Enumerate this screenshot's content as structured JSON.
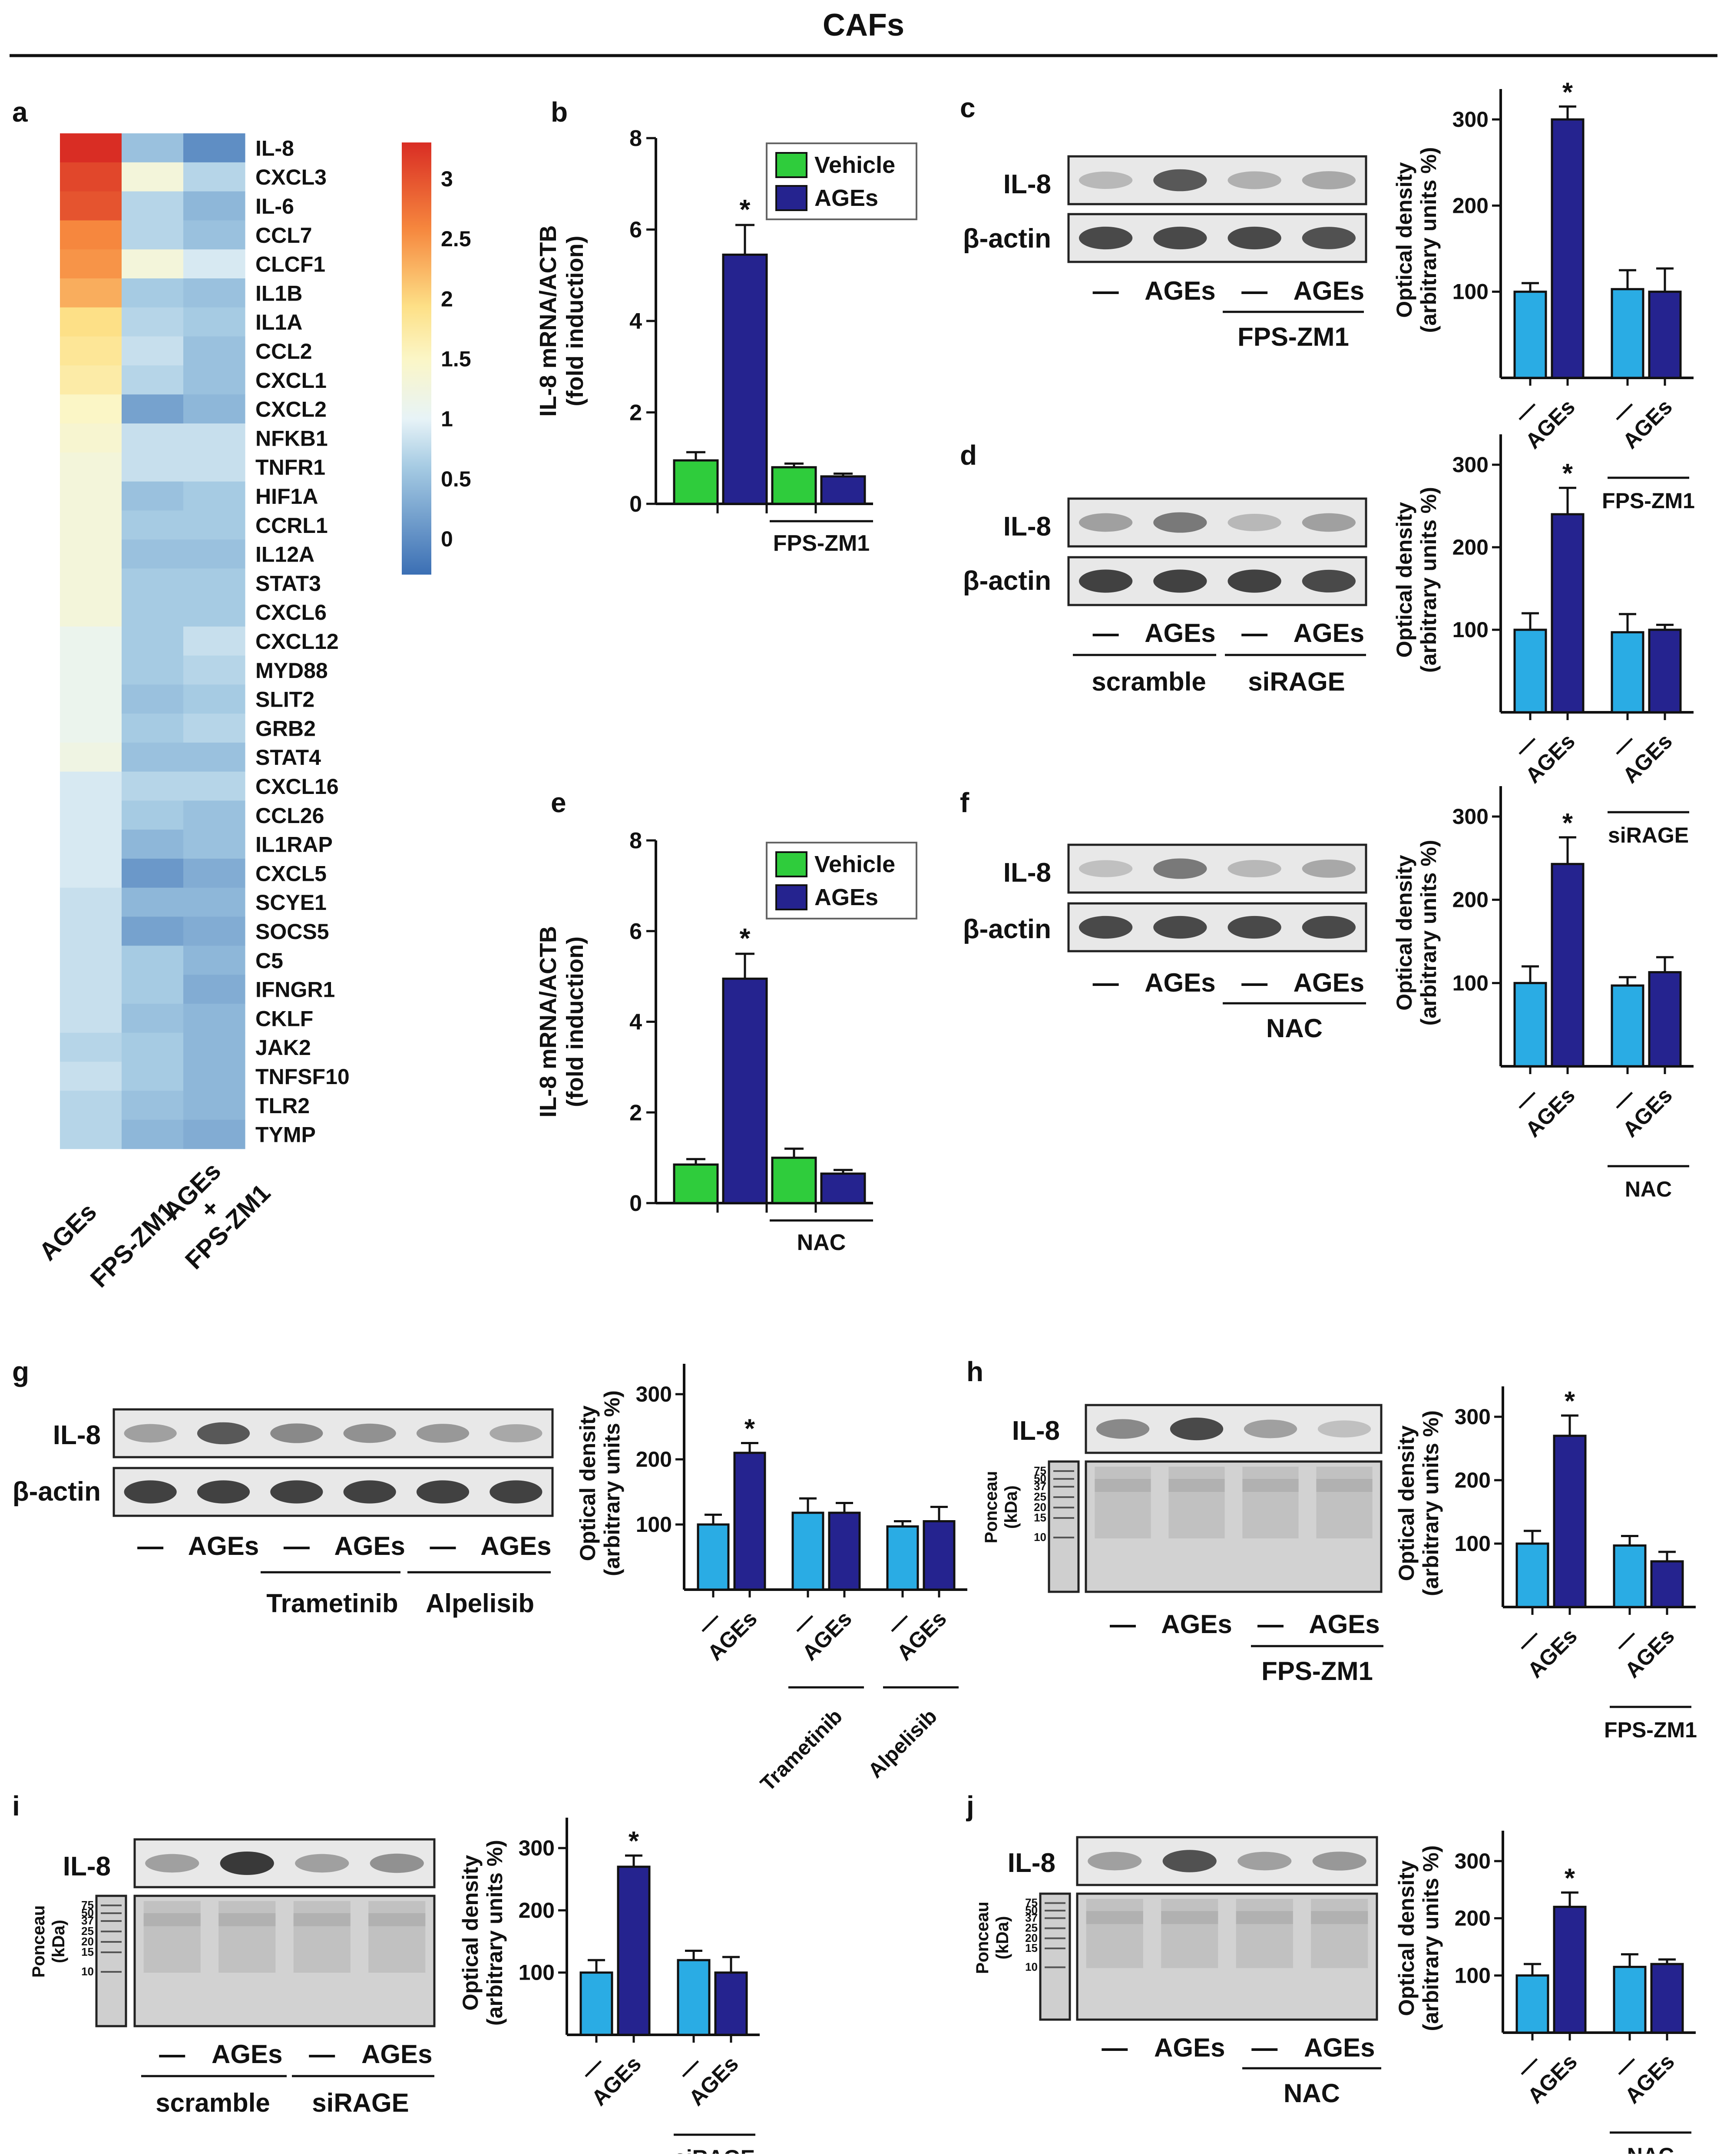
{
  "title": "CAFs",
  "colors": {
    "vehicle_green": "#2fcc3c",
    "ages_navy": "#25238f",
    "ctrl_cyan": "#2aace4",
    "axis": "#111111"
  },
  "panels": {
    "a": {
      "letter": "a"
    },
    "b": {
      "letter": "b",
      "ylabel1": "IL-8 mRNA/ACTB",
      "ylabel2": "(fold induction)",
      "treatment": "FPS-ZM1"
    },
    "c": {
      "letter": "c",
      "lane_labels": [
        "—",
        "AGEs",
        "—",
        "AGEs"
      ],
      "treatment": "FPS-ZM1"
    },
    "d": {
      "letter": "d",
      "lane_labels": [
        "—",
        "AGEs",
        "—",
        "AGEs"
      ],
      "group1": "scramble",
      "group2": "siRAGE"
    },
    "e": {
      "letter": "e",
      "ylabel1": "IL-8 mRNA/ACTB",
      "ylabel2": "(fold induction)",
      "treatment": "NAC"
    },
    "f": {
      "letter": "f",
      "lane_labels": [
        "—",
        "AGEs",
        "—",
        "AGEs"
      ],
      "treatment": "NAC"
    },
    "g": {
      "letter": "g",
      "lane_labels": [
        "—",
        "AGEs",
        "—",
        "AGEs",
        "—",
        "AGEs"
      ],
      "group1": "Trametinib",
      "group2": "Alpelisib"
    },
    "h": {
      "letter": "h",
      "lane_labels": [
        "—",
        "AGEs",
        "—",
        "AGEs"
      ],
      "treatment": "FPS-ZM1"
    },
    "i": {
      "letter": "i",
      "lane_labels": [
        "—",
        "AGEs",
        "—",
        "AGEs"
      ],
      "group1": "scramble",
      "group2": "siRAGE"
    },
    "j": {
      "letter": "j",
      "lane_labels": [
        "—",
        "AGEs",
        "—",
        "AGEs"
      ],
      "treatment": "NAC"
    }
  },
  "blot_labels": {
    "il8": "IL-8",
    "actin": "β-actin",
    "ponceau": "Ponceau",
    "kda": "(kDa)",
    "markers": [
      "75",
      "50",
      "37",
      "25",
      "20",
      "15",
      "10"
    ]
  },
  "densitometry": {
    "ylabel1": "Optical density",
    "ylabel2": "(arbitrary units %)"
  },
  "chart_data": [
    {
      "panel": "a",
      "type": "heatmap",
      "title": "",
      "colorbar_ticks": [
        "3",
        "2.5",
        "2",
        "1.5",
        "1",
        "0.5",
        "0"
      ],
      "colorbar_range": [
        -0.3,
        3.3
      ],
      "columns": [
        "AGEs",
        "FPS-ZM1",
        "AGEs\n+\nFPS-ZM1"
      ],
      "rows": [
        "IL-8",
        "CXCL3",
        "IL-6",
        "CCL7",
        "CLCF1",
        "IL1B",
        "IL1A",
        "CCL2",
        "CXCL1",
        "CXCL2",
        "NFKB1",
        "TNFR1",
        "HIF1A",
        "CCRL1",
        "IL12A",
        "STAT3",
        "CXCL6",
        "CXCL12",
        "MYD88",
        "SLIT2",
        "GRB2",
        "STAT4",
        "CXCL16",
        "CCL26",
        "IL1RAP",
        "CXCL5",
        "SCYE1",
        "SOCS5",
        "C5",
        "IFNGR1",
        "CKLF",
        "JAK2",
        "TNFSF10",
        "TLR2",
        "TYMP"
      ],
      "values": [
        [
          3.3,
          0.5,
          0.0
        ],
        [
          3.1,
          1.3,
          0.7
        ],
        [
          3.0,
          0.7,
          0.4
        ],
        [
          2.6,
          0.7,
          0.5
        ],
        [
          2.5,
          1.3,
          0.9
        ],
        [
          2.3,
          0.6,
          0.5
        ],
        [
          1.9,
          0.7,
          0.6
        ],
        [
          1.8,
          0.8,
          0.5
        ],
        [
          1.7,
          0.7,
          0.5
        ],
        [
          1.5,
          0.2,
          0.4
        ],
        [
          1.4,
          0.8,
          0.8
        ],
        [
          1.3,
          0.8,
          0.8
        ],
        [
          1.3,
          0.5,
          0.6
        ],
        [
          1.3,
          0.6,
          0.6
        ],
        [
          1.3,
          0.5,
          0.5
        ],
        [
          1.3,
          0.6,
          0.6
        ],
        [
          1.3,
          0.6,
          0.6
        ],
        [
          1.1,
          0.6,
          0.8
        ],
        [
          1.1,
          0.6,
          0.7
        ],
        [
          1.1,
          0.5,
          0.6
        ],
        [
          1.1,
          0.6,
          0.7
        ],
        [
          1.2,
          0.5,
          0.5
        ],
        [
          0.9,
          0.7,
          0.7
        ],
        [
          0.9,
          0.6,
          0.5
        ],
        [
          0.9,
          0.4,
          0.5
        ],
        [
          0.9,
          0.1,
          0.3
        ],
        [
          0.8,
          0.4,
          0.4
        ],
        [
          0.8,
          0.2,
          0.3
        ],
        [
          0.8,
          0.6,
          0.4
        ],
        [
          0.8,
          0.6,
          0.3
        ],
        [
          0.8,
          0.5,
          0.4
        ],
        [
          0.7,
          0.6,
          0.4
        ],
        [
          0.8,
          0.6,
          0.4
        ],
        [
          0.7,
          0.5,
          0.4
        ],
        [
          0.7,
          0.4,
          0.3
        ]
      ]
    },
    {
      "panel": "b",
      "type": "bar",
      "ylim": [
        0,
        8
      ],
      "yticks": [
        "0",
        "2",
        "4",
        "6",
        "8"
      ],
      "ylabel": "IL-8 mRNA/ACTB (fold induction)",
      "legend": [
        "Vehicle",
        "AGEs"
      ],
      "legend_loc": "top-right",
      "series": [
        {
          "name": "Vehicle",
          "values": [
            0.95,
            0.8
          ]
        },
        {
          "name": "AGEs",
          "values": [
            5.45,
            0.6
          ]
        }
      ],
      "bars": [
        {
          "group": "Vehicle",
          "value": 0.95,
          "err": 0.18
        },
        {
          "group": "AGEs",
          "value": 5.45,
          "err": 0.65,
          "sig": "*"
        },
        {
          "group": "Vehicle",
          "value": 0.8,
          "err": 0.08
        },
        {
          "group": "AGEs",
          "value": 0.6,
          "err": 0.06
        }
      ],
      "treatment_bracket": "FPS-ZM1"
    },
    {
      "panel": "c",
      "type": "bar",
      "ylim": [
        0,
        300
      ],
      "yticks": [
        "100",
        "200",
        "300"
      ],
      "ylabel": "Optical density (arbitrary units %)",
      "categories": [
        "—",
        "AGEs",
        "—",
        "AGEs"
      ],
      "treatment_bracket": "FPS-ZM1",
      "bars": [
        {
          "value": 100,
          "err": 10
        },
        {
          "value": 300,
          "err": 15,
          "sig": "*"
        },
        {
          "value": 103,
          "err": 22
        },
        {
          "value": 100,
          "err": 27
        }
      ]
    },
    {
      "panel": "d",
      "type": "bar",
      "ylim": [
        0,
        300
      ],
      "yticks": [
        "100",
        "200",
        "300"
      ],
      "ylabel": "Optical density (arbitrary units %)",
      "categories": [
        "—",
        "AGEs",
        "—",
        "AGEs"
      ],
      "treatment_bracket": "siRAGE",
      "bars": [
        {
          "value": 100,
          "err": 20
        },
        {
          "value": 240,
          "err": 32,
          "sig": "*"
        },
        {
          "value": 97,
          "err": 22
        },
        {
          "value": 100,
          "err": 6
        }
      ]
    },
    {
      "panel": "e",
      "type": "bar",
      "ylim": [
        0,
        8
      ],
      "yticks": [
        "0",
        "2",
        "4",
        "6",
        "8"
      ],
      "ylabel": "IL-8 mRNA/ACTB (fold induction)",
      "legend": [
        "Vehicle",
        "AGEs"
      ],
      "legend_loc": "top-right",
      "series": [
        {
          "name": "Vehicle",
          "values": [
            0.85,
            1.0
          ]
        },
        {
          "name": "AGEs",
          "values": [
            4.95,
            0.65
          ]
        }
      ],
      "bars": [
        {
          "group": "Vehicle",
          "value": 0.85,
          "err": 0.12
        },
        {
          "group": "AGEs",
          "value": 4.95,
          "err": 0.55,
          "sig": "*"
        },
        {
          "group": "Vehicle",
          "value": 1.0,
          "err": 0.2
        },
        {
          "group": "AGEs",
          "value": 0.65,
          "err": 0.08
        }
      ],
      "treatment_bracket": "NAC"
    },
    {
      "panel": "f",
      "type": "bar",
      "ylim": [
        0,
        300
      ],
      "yticks": [
        "100",
        "200",
        "300"
      ],
      "ylabel": "Optical density (arbitrary units %)",
      "categories": [
        "—",
        "AGEs",
        "—",
        "AGEs"
      ],
      "treatment_bracket": "NAC",
      "bars": [
        {
          "value": 100,
          "err": 20
        },
        {
          "value": 243,
          "err": 32,
          "sig": "*"
        },
        {
          "value": 97,
          "err": 10
        },
        {
          "value": 113,
          "err": 18
        }
      ]
    },
    {
      "panel": "g",
      "type": "bar",
      "ylim": [
        0,
        300
      ],
      "yticks": [
        "100",
        "200",
        "300"
      ],
      "ylabel": "Optical density (arbitrary units %)",
      "categories": [
        "—",
        "AGEs",
        "—",
        "AGEs",
        "—",
        "AGEs"
      ],
      "treatment_brackets": [
        "Trametinib",
        "Alpelisib"
      ],
      "bars": [
        {
          "value": 100,
          "err": 15
        },
        {
          "value": 210,
          "err": 15,
          "sig": "*"
        },
        {
          "value": 118,
          "err": 22
        },
        {
          "value": 118,
          "err": 15
        },
        {
          "value": 97,
          "err": 8
        },
        {
          "value": 105,
          "err": 22
        }
      ]
    },
    {
      "panel": "h",
      "type": "bar",
      "ylim": [
        0,
        300
      ],
      "yticks": [
        "100",
        "200",
        "300"
      ],
      "ylabel": "Optical density (arbitrary units %)",
      "categories": [
        "—",
        "AGEs",
        "—",
        "AGEs"
      ],
      "treatment_bracket": "FPS-ZM1",
      "bars": [
        {
          "value": 100,
          "err": 20
        },
        {
          "value": 270,
          "err": 32,
          "sig": "*"
        },
        {
          "value": 97,
          "err": 15
        },
        {
          "value": 72,
          "err": 15
        }
      ]
    },
    {
      "panel": "i",
      "type": "bar",
      "ylim": [
        0,
        300
      ],
      "yticks": [
        "100",
        "200",
        "300"
      ],
      "ylabel": "Optical density (arbitrary units %)",
      "categories": [
        "—",
        "AGEs",
        "—",
        "AGEs"
      ],
      "treatment_bracket": "siRAGE",
      "bars": [
        {
          "value": 100,
          "err": 20
        },
        {
          "value": 270,
          "err": 18,
          "sig": "*"
        },
        {
          "value": 120,
          "err": 15
        },
        {
          "value": 100,
          "err": 25
        }
      ]
    },
    {
      "panel": "j",
      "type": "bar",
      "ylim": [
        0,
        300
      ],
      "yticks": [
        "100",
        "200",
        "300"
      ],
      "ylabel": "Optical density (arbitrary units %)",
      "categories": [
        "—",
        "AGEs",
        "—",
        "AGEs"
      ],
      "treatment_bracket": "NAC",
      "bars": [
        {
          "value": 100,
          "err": 20
        },
        {
          "value": 220,
          "err": 25,
          "sig": "*"
        },
        {
          "value": 115,
          "err": 22
        },
        {
          "value": 120,
          "err": 8
        }
      ]
    }
  ]
}
